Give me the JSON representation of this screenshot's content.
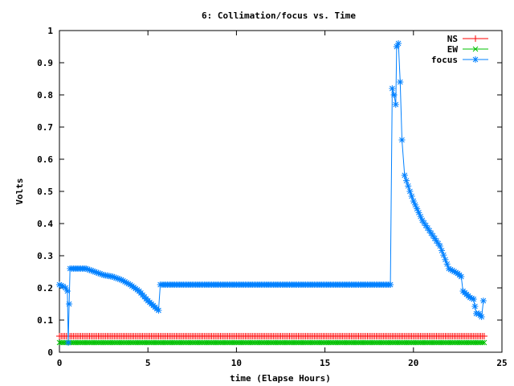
{
  "chart_data": {
    "type": "line",
    "title": "6: Collimation/focus vs. Time",
    "xlabel": "time (Elapse Hours)",
    "ylabel": "Volts",
    "xlim": [
      0,
      25
    ],
    "ylim": [
      0,
      1
    ],
    "xticks": [
      "0",
      "5",
      "10",
      "15",
      "20",
      "25"
    ],
    "yticks": [
      "0",
      "0.1",
      "0.2",
      "0.3",
      "0.4",
      "0.5",
      "0.6",
      "0.7",
      "0.8",
      "0.9",
      "1"
    ],
    "grid": false,
    "legend_position": "top-right",
    "series": [
      {
        "name": "NS",
        "color": "#ff0000",
        "marker": "plus",
        "x": [
          0,
          24
        ],
        "y": [
          0.05,
          0.05
        ]
      },
      {
        "name": "EW",
        "color": "#00c000",
        "marker": "cross",
        "x": [
          0,
          24
        ],
        "y": [
          0.03,
          0.03
        ]
      },
      {
        "name": "focus",
        "color": "#0080ff",
        "marker": "star",
        "x": [
          0,
          0.2,
          0.35,
          0.45,
          0.5,
          0.55,
          0.6,
          1.0,
          1.5,
          2.0,
          2.5,
          3.0,
          3.5,
          4.0,
          4.5,
          5.0,
          5.4,
          5.6,
          5.7,
          6.5,
          8.0,
          10.0,
          12.0,
          14.0,
          16.0,
          18.0,
          18.6,
          18.7,
          18.8,
          18.9,
          19.0,
          19.05,
          19.15,
          19.25,
          19.35,
          19.5,
          19.8,
          20.0,
          20.5,
          21.0,
          21.5,
          22.0,
          22.5,
          22.7,
          22.8,
          23.0,
          23.2,
          23.4,
          23.55,
          23.7,
          23.85,
          23.95
        ],
        "y": [
          0.21,
          0.205,
          0.2,
          0.19,
          0.03,
          0.15,
          0.26,
          0.26,
          0.26,
          0.25,
          0.24,
          0.235,
          0.225,
          0.21,
          0.19,
          0.16,
          0.14,
          0.13,
          0.21,
          0.21,
          0.21,
          0.21,
          0.21,
          0.21,
          0.21,
          0.21,
          0.21,
          0.21,
          0.82,
          0.8,
          0.77,
          0.95,
          0.96,
          0.84,
          0.66,
          0.55,
          0.5,
          0.47,
          0.41,
          0.37,
          0.33,
          0.26,
          0.245,
          0.235,
          0.19,
          0.18,
          0.17,
          0.165,
          0.12,
          0.12,
          0.11,
          0.16
        ]
      }
    ]
  }
}
